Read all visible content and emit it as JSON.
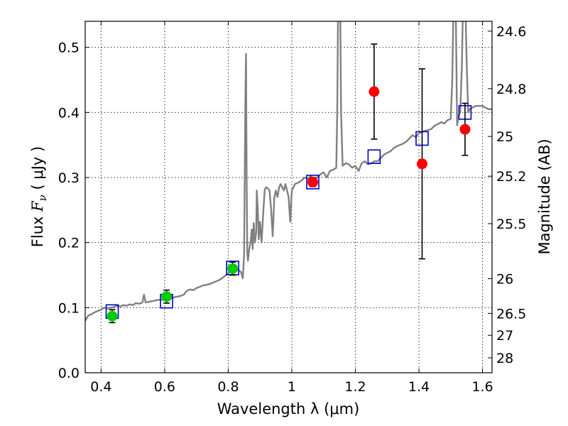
{
  "chart_data": {
    "type": "scatter",
    "xlabel": "Wavelength  λ (μm)",
    "ylabel": "Flux  F_ν  ( μJy )",
    "ylabel_parts": {
      "prefix": "Flux  ",
      "symbol": "F",
      "subscript": "ν",
      "suffix": "  ( μJy )"
    },
    "y2label": "Magnitude (AB)",
    "xlim": [
      0.35,
      1.63
    ],
    "ylim": [
      0.0,
      0.54
    ],
    "grid": true,
    "x_ticks": [
      {
        "value": 0.4,
        "label": "0.4"
      },
      {
        "value": 0.6,
        "label": "0.6"
      },
      {
        "value": 0.8,
        "label": "0.8"
      },
      {
        "value": 1.0,
        "label": "1"
      },
      {
        "value": 1.2,
        "label": "1.2"
      },
      {
        "value": 1.4,
        "label": "1.4"
      },
      {
        "value": 1.6,
        "label": "1.6"
      }
    ],
    "y_ticks": [
      {
        "value": 0.0,
        "label": "0.0"
      },
      {
        "value": 0.1,
        "label": "0.1"
      },
      {
        "value": 0.2,
        "label": "0.2"
      },
      {
        "value": 0.3,
        "label": "0.3"
      },
      {
        "value": 0.4,
        "label": "0.4"
      },
      {
        "value": 0.5,
        "label": "0.5"
      }
    ],
    "y2_ticks": [
      {
        "value": 24.6,
        "label": "24.6"
      },
      {
        "value": 24.8,
        "label": "24.8"
      },
      {
        "value": 25.0,
        "label": "25"
      },
      {
        "value": 25.2,
        "label": "25.2"
      },
      {
        "value": 25.5,
        "label": "25.5"
      },
      {
        "value": 26.0,
        "label": "26"
      },
      {
        "value": 26.5,
        "label": "26.5"
      },
      {
        "value": 27.0,
        "label": "27"
      },
      {
        "value": 28.0,
        "label": "28"
      }
    ],
    "series": [
      {
        "role": "model_spectrum",
        "color": "#808080",
        "points": [
          [
            0.35,
            0.08
          ],
          [
            0.36,
            0.088
          ],
          [
            0.37,
            0.09
          ],
          [
            0.38,
            0.093
          ],
          [
            0.39,
            0.095
          ],
          [
            0.4,
            0.097
          ],
          [
            0.41,
            0.1
          ],
          [
            0.42,
            0.099
          ],
          [
            0.43,
            0.1
          ],
          [
            0.44,
            0.101
          ],
          [
            0.45,
            0.103
          ],
          [
            0.46,
            0.102
          ],
          [
            0.47,
            0.104
          ],
          [
            0.48,
            0.103
          ],
          [
            0.49,
            0.105
          ],
          [
            0.5,
            0.104
          ],
          [
            0.51,
            0.107
          ],
          [
            0.52,
            0.106
          ],
          [
            0.53,
            0.108
          ],
          [
            0.535,
            0.12
          ],
          [
            0.54,
            0.108
          ],
          [
            0.55,
            0.109
          ],
          [
            0.56,
            0.11
          ],
          [
            0.57,
            0.111
          ],
          [
            0.58,
            0.112
          ],
          [
            0.59,
            0.112
          ],
          [
            0.6,
            0.113
          ],
          [
            0.61,
            0.114
          ],
          [
            0.62,
            0.114
          ],
          [
            0.63,
            0.116
          ],
          [
            0.64,
            0.117
          ],
          [
            0.65,
            0.118
          ],
          [
            0.66,
            0.12
          ],
          [
            0.67,
            0.126
          ],
          [
            0.68,
            0.128
          ],
          [
            0.69,
            0.127
          ],
          [
            0.7,
            0.13
          ],
          [
            0.71,
            0.132
          ],
          [
            0.72,
            0.134
          ],
          [
            0.73,
            0.135
          ],
          [
            0.74,
            0.136
          ],
          [
            0.75,
            0.138
          ],
          [
            0.76,
            0.14
          ],
          [
            0.77,
            0.142
          ],
          [
            0.78,
            0.145
          ],
          [
            0.79,
            0.149
          ],
          [
            0.8,
            0.153
          ],
          [
            0.81,
            0.155
          ],
          [
            0.82,
            0.156
          ],
          [
            0.83,
            0.158
          ],
          [
            0.84,
            0.155
          ],
          [
            0.843,
            0.15
          ],
          [
            0.846,
            0.145
          ],
          [
            0.85,
            0.18
          ],
          [
            0.852,
            0.3
          ],
          [
            0.854,
            0.42
          ],
          [
            0.856,
            0.49
          ],
          [
            0.858,
            0.3
          ],
          [
            0.86,
            0.185
          ],
          [
            0.862,
            0.172
          ],
          [
            0.866,
            0.19
          ],
          [
            0.87,
            0.2
          ],
          [
            0.874,
            0.22
          ],
          [
            0.877,
            0.19
          ],
          [
            0.88,
            0.23
          ],
          [
            0.884,
            0.2
          ],
          [
            0.888,
            0.215
          ],
          [
            0.89,
            0.28
          ],
          [
            0.893,
            0.25
          ],
          [
            0.896,
            0.205
          ],
          [
            0.9,
            0.232
          ],
          [
            0.905,
            0.2
          ],
          [
            0.91,
            0.245
          ],
          [
            0.915,
            0.282
          ],
          [
            0.92,
            0.285
          ],
          [
            0.925,
            0.283
          ],
          [
            0.93,
            0.28
          ],
          [
            0.935,
            0.25
          ],
          [
            0.94,
            0.21
          ],
          [
            0.945,
            0.27
          ],
          [
            0.95,
            0.28
          ],
          [
            0.955,
            0.27
          ],
          [
            0.96,
            0.285
          ],
          [
            0.965,
            0.29
          ],
          [
            0.97,
            0.285
          ],
          [
            0.975,
            0.28
          ],
          [
            0.98,
            0.29
          ],
          [
            0.99,
            0.27
          ],
          [
            0.995,
            0.232
          ],
          [
            1.0,
            0.28
          ],
          [
            1.01,
            0.29
          ],
          [
            1.02,
            0.292
          ],
          [
            1.03,
            0.295
          ],
          [
            1.04,
            0.3
          ],
          [
            1.05,
            0.298
          ],
          [
            1.06,
            0.302
          ],
          [
            1.07,
            0.298
          ],
          [
            1.08,
            0.3
          ],
          [
            1.09,
            0.305
          ],
          [
            1.1,
            0.308
          ],
          [
            1.11,
            0.3
          ],
          [
            1.12,
            0.31
          ],
          [
            1.13,
            0.312
          ],
          [
            1.14,
            0.315
          ],
          [
            1.143,
            0.4
          ],
          [
            1.146,
            0.58
          ],
          [
            1.152,
            0.58
          ],
          [
            1.155,
            0.4
          ],
          [
            1.16,
            0.318
          ],
          [
            1.17,
            0.322
          ],
          [
            1.18,
            0.32
          ],
          [
            1.19,
            0.315
          ],
          [
            1.2,
            0.318
          ],
          [
            1.21,
            0.31
          ],
          [
            1.22,
            0.322
          ],
          [
            1.23,
            0.325
          ],
          [
            1.24,
            0.32
          ],
          [
            1.25,
            0.322
          ],
          [
            1.26,
            0.325
          ],
          [
            1.27,
            0.325
          ],
          [
            1.28,
            0.33
          ],
          [
            1.29,
            0.335
          ],
          [
            1.3,
            0.338
          ],
          [
            1.31,
            0.34
          ],
          [
            1.32,
            0.345
          ],
          [
            1.33,
            0.348
          ],
          [
            1.34,
            0.35
          ],
          [
            1.35,
            0.352
          ],
          [
            1.36,
            0.355
          ],
          [
            1.37,
            0.36
          ],
          [
            1.38,
            0.365
          ],
          [
            1.39,
            0.362
          ],
          [
            1.4,
            0.368
          ],
          [
            1.41,
            0.37
          ],
          [
            1.42,
            0.372
          ],
          [
            1.43,
            0.373
          ],
          [
            1.44,
            0.375
          ],
          [
            1.45,
            0.38
          ],
          [
            1.46,
            0.382
          ],
          [
            1.47,
            0.385
          ],
          [
            1.48,
            0.383
          ],
          [
            1.49,
            0.388
          ],
          [
            1.5,
            0.39
          ],
          [
            1.505,
            0.45
          ],
          [
            1.51,
            0.6
          ],
          [
            1.515,
            0.6
          ],
          [
            1.52,
            0.38
          ],
          [
            1.525,
            0.395
          ],
          [
            1.53,
            0.4
          ],
          [
            1.535,
            0.47
          ],
          [
            1.54,
            0.6
          ],
          [
            1.545,
            0.6
          ],
          [
            1.55,
            0.48
          ],
          [
            1.555,
            0.4
          ],
          [
            1.56,
            0.405
          ],
          [
            1.57,
            0.408
          ],
          [
            1.58,
            0.41
          ],
          [
            1.59,
            0.41
          ],
          [
            1.6,
            0.41
          ],
          [
            1.61,
            0.407
          ],
          [
            1.62,
            0.405
          ],
          [
            1.63,
            0.405
          ]
        ]
      },
      {
        "role": "model_photometry",
        "marker": "open-square",
        "color": "#0000cc",
        "points": [
          [
            0.435,
            0.094
          ],
          [
            0.606,
            0.11
          ],
          [
            0.814,
            0.161
          ],
          [
            1.066,
            0.293
          ],
          [
            1.259,
            0.332
          ],
          [
            1.41,
            0.36
          ],
          [
            1.545,
            0.4
          ]
        ]
      },
      {
        "role": "observed_optical",
        "marker": "filled-circle",
        "color": "#00cc00",
        "points": [
          {
            "x": 0.435,
            "y": 0.087,
            "yerr": 0.01
          },
          {
            "x": 0.606,
            "y": 0.117,
            "yerr": 0.01
          },
          {
            "x": 0.814,
            "y": 0.16,
            "yerr": 0.01
          }
        ]
      },
      {
        "role": "observed_nir",
        "marker": "filled-circle",
        "color": "#ff0000",
        "points": [
          {
            "x": 1.066,
            "y": 0.293,
            "yerr": 0.007
          },
          {
            "x": 1.259,
            "y": 0.432,
            "yerr": 0.073
          },
          {
            "x": 1.41,
            "y": 0.321,
            "yerr": 0.146
          },
          {
            "x": 1.545,
            "y": 0.374,
            "yerr": 0.04
          }
        ]
      }
    ]
  }
}
